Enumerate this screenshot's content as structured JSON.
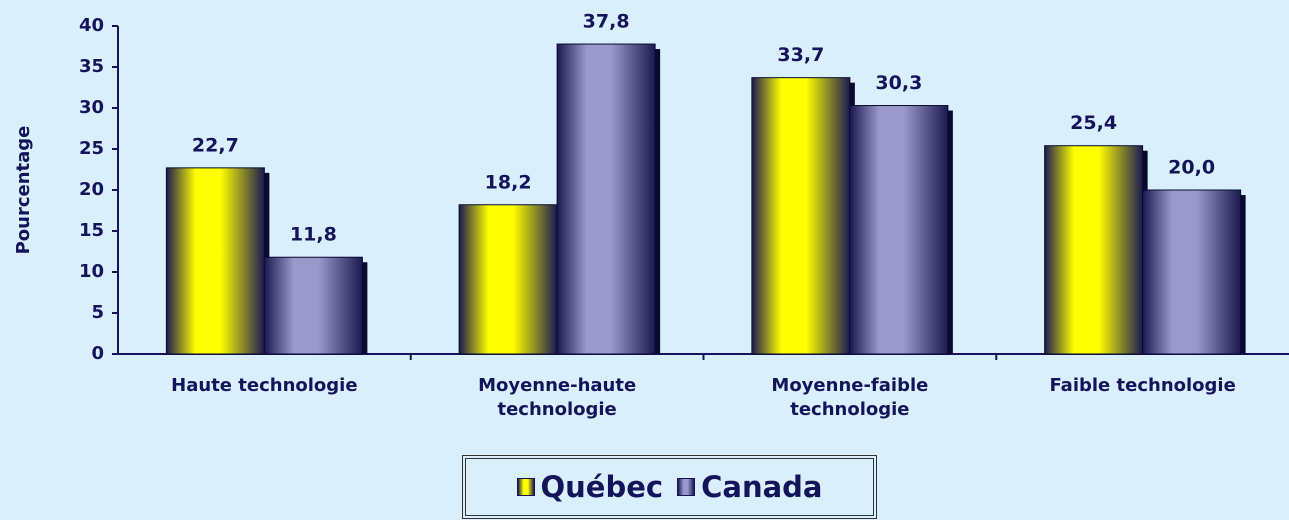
{
  "chart_data": {
    "type": "bar",
    "y_label": "Pourcentage",
    "categories": [
      "Haute technologie",
      "Moyenne-haute technologie",
      "Moyenne-faible technologie",
      "Faible technologie"
    ],
    "series": [
      {
        "name": "Québec",
        "color": "#ffff00",
        "values": [
          22.7,
          18.2,
          33.7,
          25.4
        ],
        "value_labels": [
          "22,7",
          "18,2",
          "33,7",
          "25,4"
        ]
      },
      {
        "name": "Canada",
        "color": "#9999cc",
        "values": [
          11.8,
          37.8,
          30.3,
          20.0
        ],
        "value_labels": [
          "11,8",
          "37,8",
          "30,3",
          "20,0"
        ]
      }
    ],
    "ylim": [
      0,
      40
    ],
    "yticks": [
      0,
      5,
      10,
      15,
      20,
      25,
      30,
      35,
      40
    ],
    "grid": false,
    "legend": "bottom"
  }
}
